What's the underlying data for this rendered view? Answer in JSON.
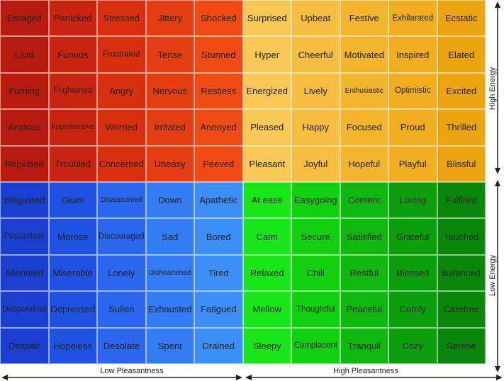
{
  "labels": {
    "high_energy": "High Energy",
    "low_energy": "Low Energy",
    "low_pleasantness": "Low Pleasantness",
    "high_pleasantness": "High Pleasantness"
  },
  "rows": [
    [
      "Enraged",
      "Panicked",
      "Stressed",
      "Jittery",
      "Shocked",
      "Surprised",
      "Upbeat",
      "Festive",
      "Exhilarated",
      "Ecstatic"
    ],
    [
      "Livid",
      "Furious",
      "Frustrated",
      "Tense",
      "Stunned",
      "Hyper",
      "Cheerful",
      "Motivated",
      "Inspired",
      "Elated"
    ],
    [
      "Fuming",
      "Frightened",
      "Angry",
      "Nervous",
      "Restless",
      "Energized",
      "Lively",
      "Enthusiastic",
      "Optimistic",
      "Excited"
    ],
    [
      "Anxious",
      "Apprehensive",
      "Worried",
      "Irritated",
      "Annoyed",
      "Pleased",
      "Happy",
      "Focused",
      "Proud",
      "Thrilled"
    ],
    [
      "Repulsed",
      "Troubled",
      "Concerned",
      "Uneasy",
      "Peeved",
      "Pleasant",
      "Joyful",
      "Hopeful",
      "Playful",
      "Blissful"
    ],
    [
      "Disgusted",
      "Glum",
      "Disappointed",
      "Down",
      "Apathetic",
      "At ease",
      "Easygoing",
      "Content",
      "Loving",
      "Fulfilled"
    ],
    [
      "Pessimistic",
      "Morose",
      "Discouraged",
      "Sad",
      "Bored",
      "Calm",
      "Secure",
      "Satisfied",
      "Grateful",
      "Touched"
    ],
    [
      "Alienated",
      "Miserable",
      "Lonely",
      "Disheartened",
      "Tired",
      "Relaxed",
      "Chill",
      "Restful",
      "Blessed",
      "Balanced"
    ],
    [
      "Despondent",
      "Depressed",
      "Sullen",
      "Exhausted",
      "Fatigued",
      "Mellow",
      "Thoughtful",
      "Peaceful",
      "Comfy",
      "Carefree"
    ],
    [
      "Despair",
      "Hopeless",
      "Desolate",
      "Spent",
      "Drained",
      "Sleepy",
      "Complacent",
      "Tranquil",
      "Cozy",
      "Serene"
    ]
  ],
  "colors": {
    "red": [
      "#b81a0d",
      "#c9240f",
      "#d8300f",
      "#e43d12",
      "#ef4a14"
    ],
    "yellow": [
      "#f9c755",
      "#f6bd40",
      "#f3b52e",
      "#f0ad1f",
      "#eda411"
    ],
    "blue": [
      "#1b3fd0",
      "#1f52e3",
      "#2a66ee",
      "#347cf4",
      "#3c8ff6"
    ],
    "green": [
      "#19e619",
      "#12cf12",
      "#0fb70f",
      "#0c9e0c",
      "#0a870a"
    ]
  }
}
